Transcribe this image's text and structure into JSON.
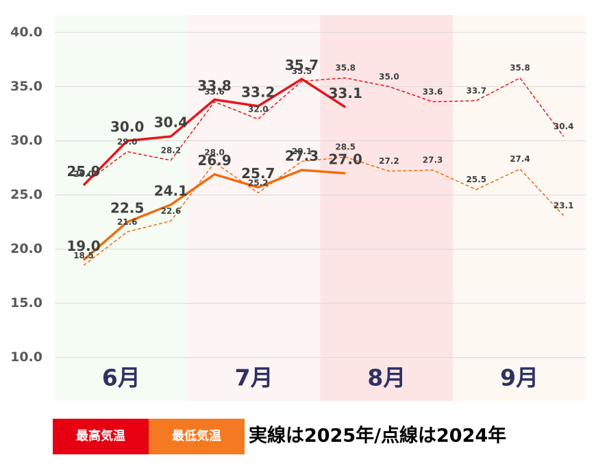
{
  "chart_data": {
    "type": "line",
    "categories": [
      null,
      null,
      null,
      null,
      null,
      null,
      null,
      null,
      null,
      null,
      null,
      null
    ],
    "bands": [
      {
        "label": "6月",
        "color": "#f4fcf3"
      },
      {
        "label": "7月",
        "color": "#fdf4f4"
      },
      {
        "label": "8月",
        "color": "#fde5e5"
      },
      {
        "label": "9月",
        "color": "#fdf8f2"
      }
    ],
    "series": [
      {
        "name": "最高気温",
        "color": "#e8141b",
        "dashed": false,
        "values": [
          25.9,
          30.0,
          30.4,
          33.8,
          33.2,
          35.7,
          33.1,
          null,
          null,
          null,
          null,
          null
        ],
        "value_labels": [
          "25.9",
          "30.0",
          "30.4",
          "33.8",
          "33.2",
          "35.7",
          "33.1",
          null,
          null,
          null,
          null,
          null
        ]
      },
      {
        "name": "最低気温",
        "color": "#f26b0f",
        "dashed": false,
        "values": [
          19.0,
          22.5,
          24.1,
          26.9,
          25.7,
          27.3,
          27.0,
          null,
          null,
          null,
          null,
          null
        ],
        "value_labels": [
          "19.0",
          "22.5",
          "24.1",
          "26.9",
          "25.7",
          "27.3",
          "27.0",
          null,
          null,
          null,
          null,
          null
        ]
      },
      {
        "color": "#e8141b",
        "dashed": true,
        "values": [
          26.0,
          29.0,
          28.2,
          33.6,
          32.0,
          35.5,
          35.8,
          35.0,
          33.6,
          33.7,
          35.8,
          30.4
        ],
        "value_labels": [
          "26.0",
          "29.0",
          "28.2",
          "33.6",
          "32.0",
          "35.5",
          "35.8",
          "35.0",
          "33.6",
          "33.7",
          "35.8",
          "30.4"
        ]
      },
      {
        "color": "#f26b0f",
        "dashed": true,
        "values": [
          18.5,
          21.6,
          22.6,
          28.0,
          25.2,
          28.1,
          28.5,
          27.2,
          27.3,
          25.5,
          27.4,
          23.1
        ],
        "value_labels": [
          "18.5",
          "21.6",
          "22.6",
          "28.0",
          "25.2",
          "28.1",
          "28.5",
          "27.2",
          "27.3",
          "25.5",
          "27.4",
          "23.1"
        ]
      }
    ],
    "legend_colors": [
      "#e60012",
      "#f47920"
    ],
    "note": "実線は2025年/点線は2024年",
    "ylim": [
      6.0,
      41.6
    ],
    "yticks": [
      {
        "value": 10,
        "label": "10.0"
      },
      {
        "value": 15,
        "label": "15.0"
      },
      {
        "value": 20,
        "label": "20.0"
      },
      {
        "value": 25,
        "label": "25.0"
      },
      {
        "value": 30,
        "label": "30.0"
      },
      {
        "value": 35,
        "label": "35.0"
      },
      {
        "value": 40,
        "label": "40.0"
      }
    ],
    "grid": true
  }
}
